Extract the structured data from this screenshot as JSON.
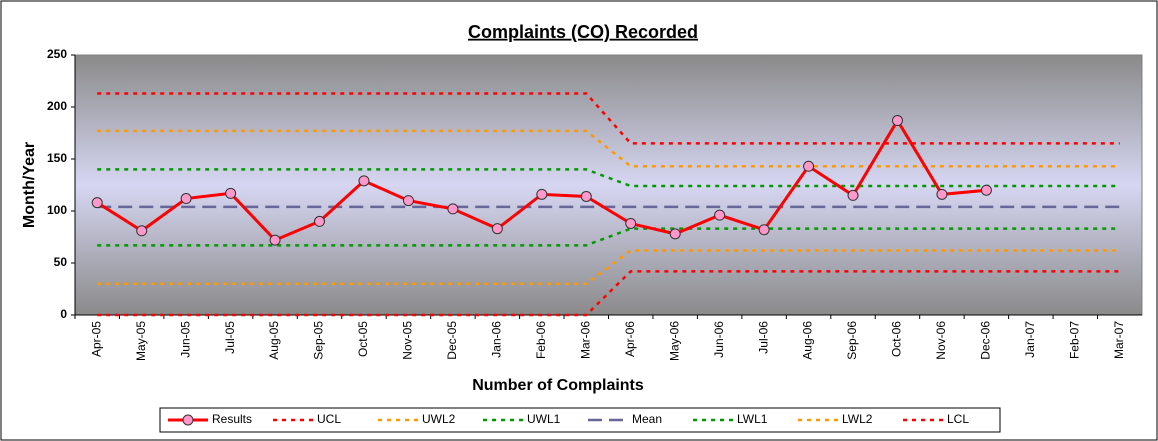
{
  "chart_data": {
    "type": "line",
    "title": "Complaints (CO) Recorded",
    "x_label": "Number of Complaints",
    "y_label": "Month/Year",
    "categories": [
      "Apr-05",
      "May-05",
      "Jun-05",
      "Jul-05",
      "Aug-05",
      "Sep-05",
      "Oct-05",
      "Nov-05",
      "Dec-05",
      "Jan-06",
      "Feb-06",
      "Mar-06",
      "Apr-06",
      "May-06",
      "Jun-06",
      "Jul-06",
      "Aug-06",
      "Sep-06",
      "Oct-06",
      "Nov-06",
      "Dec-06",
      "Jan-07",
      "Feb-07",
      "Mar-07"
    ],
    "ylim": [
      0,
      250
    ],
    "yticks": [
      0,
      50,
      100,
      150,
      200,
      250
    ],
    "grid": false,
    "legend": "bottom",
    "series": [
      {
        "name": "Results",
        "color": "#ff0000",
        "style": "solid",
        "marker": "#ff99cc",
        "values": [
          108,
          81,
          112,
          117,
          72,
          90,
          129,
          110,
          102,
          83,
          116,
          114,
          88,
          78,
          96,
          82,
          143,
          115,
          187,
          116,
          120,
          null,
          null,
          null
        ]
      },
      {
        "name": "UCL",
        "color": "#ff0000",
        "style": "dotted",
        "values": [
          213,
          213,
          213,
          213,
          213,
          213,
          213,
          213,
          213,
          213,
          213,
          213,
          165,
          165,
          165,
          165,
          165,
          165,
          165,
          165,
          165,
          165,
          165,
          165
        ]
      },
      {
        "name": "UWL2",
        "color": "#ff9900",
        "style": "dotted",
        "values": [
          177,
          177,
          177,
          177,
          177,
          177,
          177,
          177,
          177,
          177,
          177,
          177,
          143,
          143,
          143,
          143,
          143,
          143,
          143,
          143,
          143,
          143,
          143,
          143
        ]
      },
      {
        "name": "UWL1",
        "color": "#009900",
        "style": "dotted",
        "values": [
          140,
          140,
          140,
          140,
          140,
          140,
          140,
          140,
          140,
          140,
          140,
          140,
          124,
          124,
          124,
          124,
          124,
          124,
          124,
          124,
          124,
          124,
          124,
          124
        ]
      },
      {
        "name": "Mean",
        "color": "#666699",
        "style": "dashed",
        "values": [
          104,
          104,
          104,
          104,
          104,
          104,
          104,
          104,
          104,
          104,
          104,
          104,
          104,
          104,
          104,
          104,
          104,
          104,
          104,
          104,
          104,
          104,
          104,
          104
        ]
      },
      {
        "name": "LWL1",
        "color": "#009900",
        "style": "dotted",
        "values": [
          67,
          67,
          67,
          67,
          67,
          67,
          67,
          67,
          67,
          67,
          67,
          67,
          83,
          83,
          83,
          83,
          83,
          83,
          83,
          83,
          83,
          83,
          83,
          83
        ]
      },
      {
        "name": "LWL2",
        "color": "#ff9900",
        "style": "dotted",
        "values": [
          30,
          30,
          30,
          30,
          30,
          30,
          30,
          30,
          30,
          30,
          30,
          30,
          62,
          62,
          62,
          62,
          62,
          62,
          62,
          62,
          62,
          62,
          62,
          62
        ]
      },
      {
        "name": "LCL",
        "color": "#ff0000",
        "style": "dotted",
        "values": [
          0,
          0,
          0,
          0,
          0,
          0,
          0,
          0,
          0,
          0,
          0,
          0,
          42,
          42,
          42,
          42,
          42,
          42,
          42,
          42,
          42,
          42,
          42,
          42
        ]
      }
    ]
  }
}
